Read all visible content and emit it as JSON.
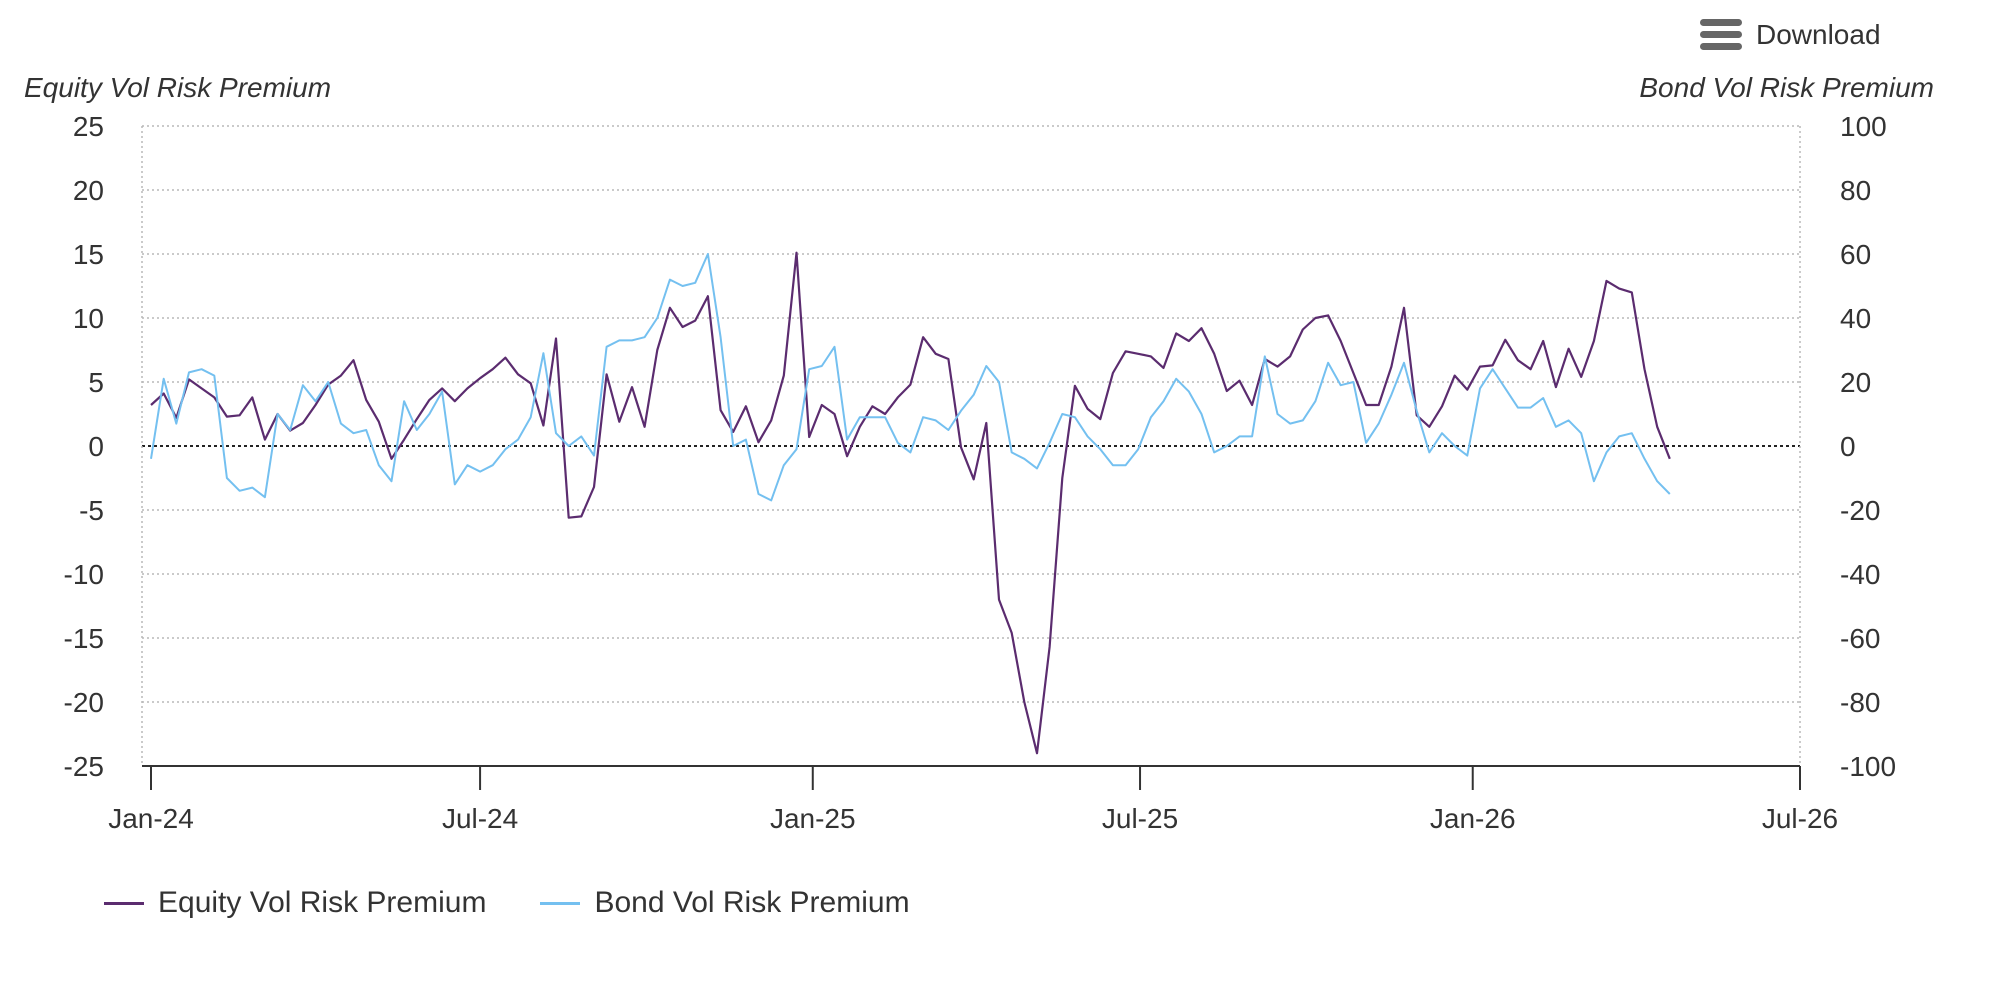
{
  "toolbar": {
    "download_label": "Download",
    "download_icon": "hamburger-menu-icon"
  },
  "chart_data": {
    "type": "line",
    "y_left_title": "Equity Vol Risk Premium",
    "y_right_title": "Bond Vol Risk Premium",
    "y_left_range": [
      -25,
      25
    ],
    "y_right_range": [
      -100,
      100
    ],
    "y_left_ticks": [
      "25",
      "20",
      "15",
      "10",
      "5",
      "0",
      "-5",
      "-10",
      "-15",
      "-20",
      "-25"
    ],
    "y_right_ticks": [
      "100",
      "80",
      "60",
      "40",
      "20",
      "0",
      "-20",
      "-40",
      "-60",
      "-80",
      "-100"
    ],
    "x_ticks": [
      "Jan-24",
      "Jul-24",
      "Jan-25",
      "Jul-25",
      "Jan-26",
      "Jul-26"
    ],
    "x_range": [
      "2024-01-01",
      "2026-07-01"
    ],
    "frequency": "weekly",
    "start_date": "2024-01-01",
    "grid": true,
    "legend_position": "bottom-left",
    "series": [
      {
        "name": "Equity Vol Risk Premium",
        "axis": "left",
        "color": "#5b2c6f",
        "values": [
          3.2,
          4.1,
          2.2,
          5.2,
          4.5,
          3.8,
          2.3,
          2.4,
          3.8,
          0.5,
          2.5,
          1.2,
          1.8,
          3.2,
          4.8,
          5.5,
          6.7,
          3.6,
          1.9,
          -1.0,
          0.5,
          2.1,
          3.6,
          4.5,
          3.5,
          4.5,
          5.3,
          6.0,
          6.9,
          5.6,
          4.9,
          1.6,
          8.4,
          -5.6,
          -5.5,
          -3.2,
          5.6,
          1.9,
          4.6,
          1.5,
          7.5,
          10.8,
          9.3,
          9.8,
          11.7,
          2.8,
          1.1,
          3.1,
          0.3,
          2.0,
          5.5,
          15.1,
          0.7,
          3.2,
          2.5,
          -0.8,
          1.5,
          3.1,
          2.5,
          3.8,
          4.8,
          8.5,
          7.2,
          6.8,
          -0.1,
          -2.6,
          1.8,
          -12.0,
          -14.6,
          -20.0,
          -24.0,
          -15.7,
          -2.5,
          4.7,
          2.9,
          2.1,
          5.7,
          7.4,
          7.2,
          7.0,
          6.1,
          8.8,
          8.2,
          9.2,
          7.2,
          4.3,
          5.1,
          3.2,
          6.8,
          6.2,
          7.0,
          9.1,
          10.0,
          10.2,
          8.2,
          5.7,
          3.2,
          3.2,
          6.2,
          10.8,
          2.4,
          1.5,
          3.1,
          5.5,
          4.4,
          6.2,
          6.3,
          8.3,
          6.7,
          6.0,
          8.2,
          4.6,
          7.6,
          5.4,
          8.2,
          12.9,
          12.3,
          12.0,
          6.0,
          1.5,
          -1.0
        ]
      },
      {
        "name": "Bond Vol Risk Premium",
        "axis": "right",
        "color": "#74c0f0",
        "values": [
          -4,
          21,
          7,
          23,
          24,
          22,
          -10,
          -14,
          -13,
          -16,
          10,
          5,
          19,
          14,
          20,
          7,
          4,
          5,
          -6,
          -11,
          14,
          5,
          10,
          17,
          -12,
          -6,
          -8,
          -6,
          -1,
          2,
          9,
          29,
          4,
          0,
          3,
          -3,
          31,
          33,
          33,
          34,
          40,
          52,
          50,
          51,
          60,
          34,
          0,
          2,
          -15,
          -17,
          -6,
          -1,
          24,
          25,
          31,
          2,
          9,
          9,
          9,
          1,
          -2,
          9,
          8,
          5,
          11,
          16,
          25,
          20,
          -2,
          -4,
          -7,
          1,
          10,
          9,
          3,
          -1,
          -6,
          -6,
          -1,
          9,
          14,
          21,
          17,
          10,
          -2,
          0,
          3,
          3,
          28,
          10,
          7,
          8,
          14,
          26,
          19,
          20,
          1,
          7,
          16,
          26,
          11,
          -2,
          4,
          0,
          -3,
          18,
          24,
          18,
          12,
          12,
          15,
          6,
          8,
          4,
          -11,
          -2,
          3,
          4,
          -4,
          -11,
          -15
        ]
      }
    ]
  }
}
